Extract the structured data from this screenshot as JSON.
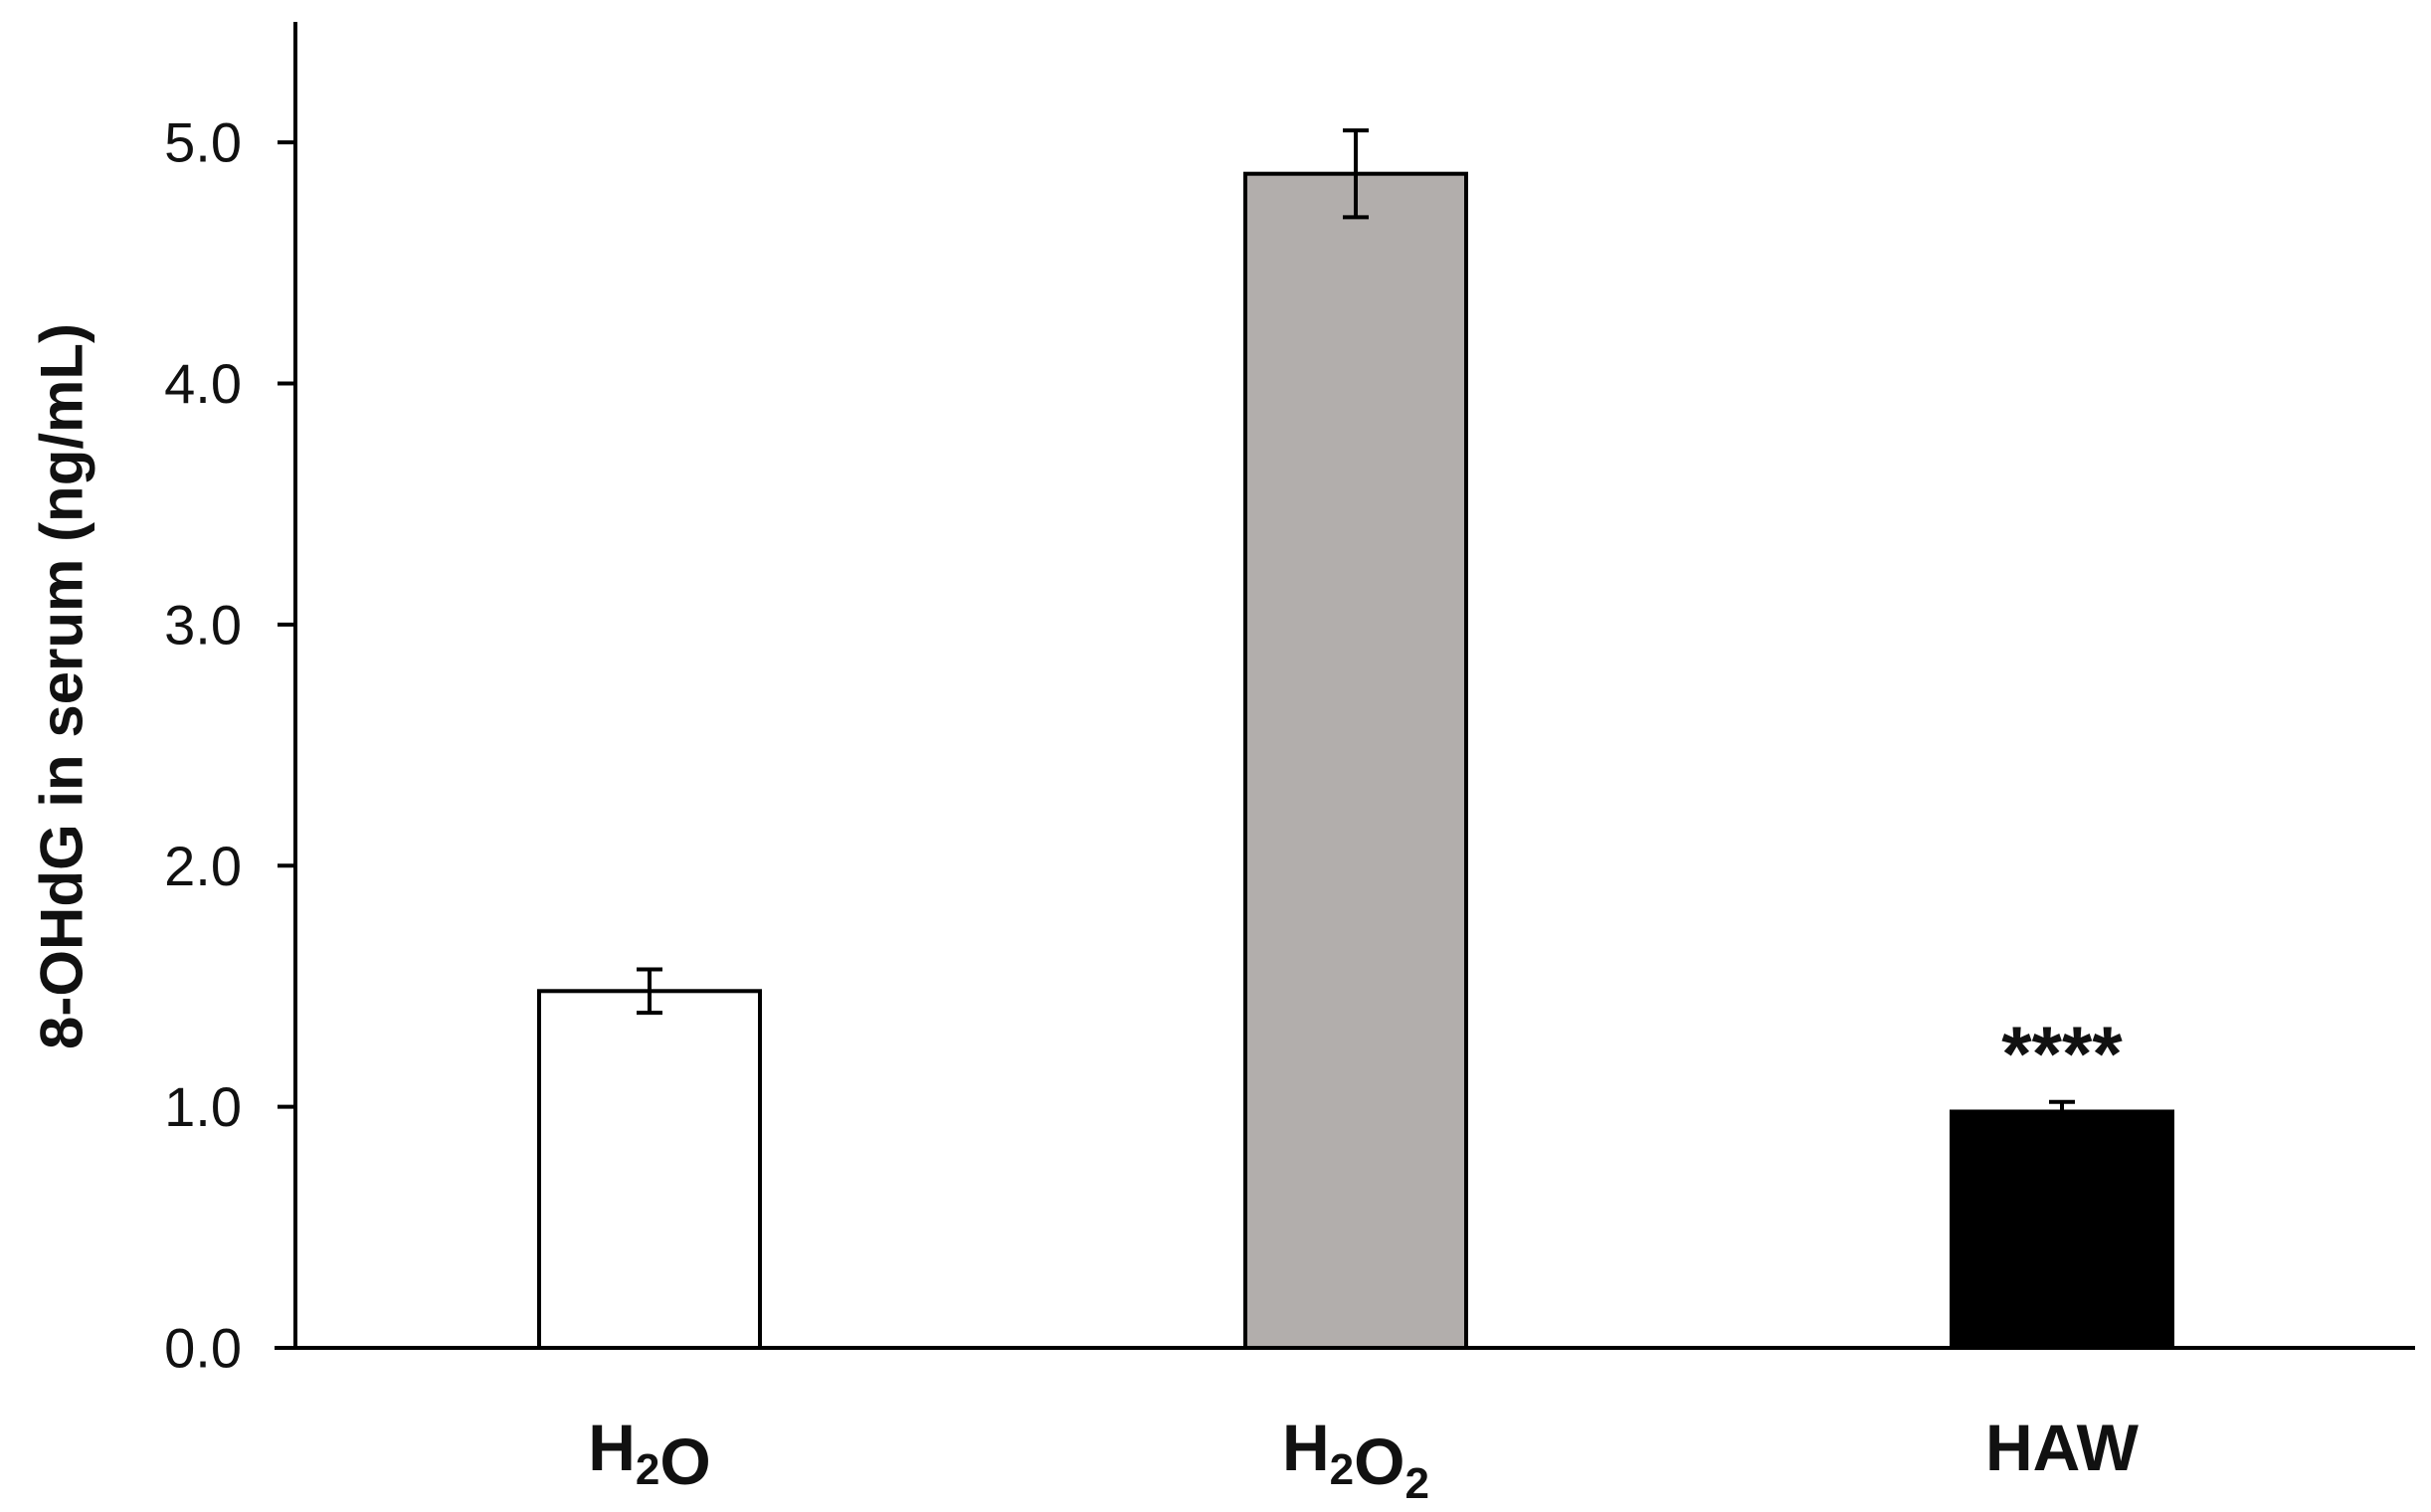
{
  "chart_data": {
    "type": "bar",
    "categories": [
      {
        "parts": [
          {
            "t": "H",
            "sub": false
          },
          {
            "t": "2",
            "sub": true
          },
          {
            "t": "O",
            "sub": false
          }
        ]
      },
      {
        "parts": [
          {
            "t": "H",
            "sub": false
          },
          {
            "t": "2",
            "sub": true
          },
          {
            "t": "O",
            "sub": false
          },
          {
            "t": "2",
            "sub": true
          }
        ]
      },
      {
        "parts": [
          {
            "t": "HAW",
            "sub": false
          }
        ]
      }
    ],
    "values": [
      1.48,
      4.87,
      0.98
    ],
    "errors": [
      0.09,
      0.18,
      0.04
    ],
    "colors": [
      "#ffffff",
      "#b2aeac",
      "#000000"
    ],
    "annotations": [
      "",
      "",
      "****"
    ],
    "ylabel": "8-OHdG in serum (ng/mL)",
    "ylim": [
      0,
      5.5
    ],
    "yticks": [
      0.0,
      1.0,
      2.0,
      3.0,
      4.0,
      5.0
    ],
    "ytick_labels": [
      "0.0",
      "1.0",
      "2.0",
      "3.0",
      "4.0",
      "5.0"
    ],
    "grid": false,
    "legend": "none"
  }
}
